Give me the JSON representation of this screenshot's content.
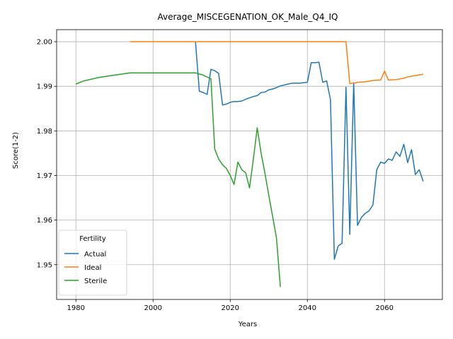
{
  "chart_data": {
    "type": "line",
    "title": "Average_MISCEGENATION_OK_Male_Q4_IQ",
    "xlabel": "Years",
    "ylabel": "Score(1-2)",
    "xlim": [
      1975,
      2075
    ],
    "ylim": [
      1.9422,
      2.0027
    ],
    "x_ticks": [
      1980,
      2000,
      2020,
      2040,
      2060
    ],
    "x_tick_labels": [
      "1980",
      "2000",
      "2020",
      "2040",
      "2060"
    ],
    "y_ticks": [
      1.95,
      1.96,
      1.97,
      1.98,
      1.99,
      2.0
    ],
    "y_tick_labels": [
      "1.95",
      "1.96",
      "1.97",
      "1.98",
      "1.99",
      "2.00"
    ],
    "grid": true,
    "legend": {
      "title": "Fertility",
      "placement": "lower-left"
    },
    "series": [
      {
        "name": "Actual",
        "color": "#1f77b4",
        "x": [
          2011,
          2012,
          2013,
          2014,
          2015,
          2016,
          2017,
          2018,
          2019,
          2020,
          2021,
          2022,
          2023,
          2024,
          2025,
          2026,
          2027,
          2028,
          2029,
          2030,
          2031,
          2032,
          2033,
          2034,
          2035,
          2036,
          2037,
          2038,
          2039,
          2040,
          2041,
          2042,
          2043,
          2044,
          2045,
          2046,
          2047,
          2048,
          2049,
          2050,
          2051,
          2052,
          2053,
          2054,
          2055,
          2056,
          2057,
          2058,
          2059,
          2060,
          2061,
          2062,
          2063,
          2064,
          2065,
          2066,
          2067,
          2068,
          2069,
          2070
        ],
        "y": [
          2.0,
          1.9889,
          1.9886,
          1.9882,
          1.9938,
          1.9935,
          1.9929,
          1.9858,
          1.986,
          1.9864,
          1.9866,
          1.9866,
          1.9867,
          1.9871,
          1.9874,
          1.9877,
          1.9879,
          1.9886,
          1.9887,
          1.9892,
          1.9894,
          1.9897,
          1.9901,
          1.9903,
          1.9905,
          1.9907,
          1.9907,
          1.9907,
          1.9908,
          1.9909,
          1.9953,
          1.9953,
          1.9954,
          1.9909,
          1.9912,
          1.987,
          1.9512,
          1.9542,
          1.9548,
          1.9898,
          1.9568,
          1.9908,
          1.9588,
          1.9606,
          1.9615,
          1.9621,
          1.9634,
          1.9713,
          1.973,
          1.9727,
          1.9737,
          1.9734,
          1.9753,
          1.9743,
          1.977,
          1.9729,
          1.9758,
          1.9702,
          1.9713,
          1.9687
        ]
      },
      {
        "name": "Ideal",
        "color": "#ff7f0e",
        "x": [
          1994,
          2000,
          2010,
          2020,
          2030,
          2040,
          2049,
          2050,
          2051,
          2052,
          2053,
          2055,
          2057,
          2059,
          2060,
          2061,
          2063,
          2065,
          2066,
          2068,
          2070
        ],
        "y": [
          2.0,
          2.0,
          2.0,
          2.0,
          2.0,
          2.0,
          2.0,
          2.0,
          1.9906,
          1.9907,
          1.9909,
          1.991,
          1.9913,
          1.9914,
          1.9934,
          1.9914,
          1.9915,
          1.9918,
          1.9921,
          1.9924,
          1.9927
        ]
      },
      {
        "name": "Sterile",
        "color": "#2ca02c",
        "x": [
          1980,
          1982,
          1984,
          1986,
          1990,
          1994,
          1998,
          2002,
          2006,
          2011,
          2013,
          2015,
          2016,
          2017,
          2018,
          2019,
          2020,
          2021,
          2022,
          2023,
          2024,
          2025,
          2026,
          2027,
          2028,
          2029,
          2030,
          2031,
          2032,
          2033
        ],
        "y": [
          1.9905,
          1.9912,
          1.9916,
          1.992,
          1.9925,
          1.993,
          1.993,
          1.993,
          1.993,
          1.993,
          1.9925,
          1.9917,
          1.9759,
          1.9737,
          1.9724,
          1.9716,
          1.97,
          1.968,
          1.973,
          1.9713,
          1.9706,
          1.9672,
          1.9736,
          1.9807,
          1.975,
          1.9705,
          1.9655,
          1.9608,
          1.956,
          1.945
        ]
      }
    ]
  }
}
